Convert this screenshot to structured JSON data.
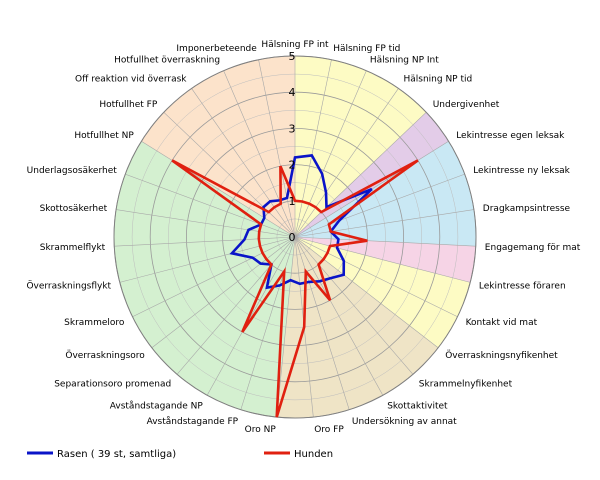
{
  "chart_data": {
    "type": "radar",
    "title": "",
    "r_range": [
      0,
      5
    ],
    "r_ticks": [
      "0",
      "1",
      "2",
      "3",
      "4",
      "5"
    ],
    "grid": true,
    "legend_position": "bottom-left",
    "axes": [
      "Hälsning FP int",
      "Hälsning FP tid",
      "Hälsning NP Int",
      "Hälsning NP tid",
      "Undergivenhet",
      "Lekintresse egen leksak",
      "Lekintresse ny leksak",
      "Dragkampsintresse",
      "Engagemang för mat",
      "Lekintresse föraren",
      "Kontakt vid mat",
      "Överraskningsnyfikenhet",
      "Skrammelnyfikenhet",
      "Skottaktivitet",
      "Undersökning av annat",
      "Oro FP",
      "Oro NP",
      "Avståndstagande FP",
      "Avståndstagande NP",
      "Separationsoro promenad",
      "Överraskningsoro",
      "Skrammeloro",
      "Överraskningsflykt",
      "Skrammelflykt",
      "Skottosäkerhet",
      "Underlagsosäkerhet",
      "Hotfullhet NP",
      "Hotfullhet FP",
      "Off reaktion vid överrask",
      "Hotfullhet överraskning",
      "Imponerbeteende"
    ],
    "sectors": [
      {
        "from": 0,
        "to": 4,
        "color": "#fdfbc4"
      },
      {
        "from": 4,
        "to": 5,
        "color": "#e3cce8"
      },
      {
        "from": 5,
        "to": 8,
        "color": "#c9e8f4"
      },
      {
        "from": 8,
        "to": 9,
        "color": "#f6d4e6"
      },
      {
        "from": 9,
        "to": 11,
        "color": "#fdfbc4"
      },
      {
        "from": 11,
        "to": 16,
        "color": "#efe4c6"
      },
      {
        "from": 16,
        "to": 26,
        "color": "#d4f0d0"
      },
      {
        "from": 26,
        "to": 31,
        "color": "#fce3cb"
      }
    ],
    "series": [
      {
        "name": "Rasen ( 39 st, samtliga)",
        "color": "#0a14c8",
        "values": [
          2.2,
          2.3,
          1.9,
          1.5,
          1.2,
          2.5,
          1.3,
          1.0,
          1.2,
          1.2,
          1.5,
          1.7,
          1.5,
          1.4,
          1.3,
          1.3,
          1.2,
          1.4,
          1.6,
          1.0,
          1.2,
          1.3,
          1.8,
          1.4,
          1.3,
          1.0,
          1.0,
          1.2,
          1.2,
          1.1,
          1.1
        ]
      },
      {
        "name": "Hunden",
        "color": "#e02010",
        "values": [
          1.0,
          1.0,
          1.0,
          1.0,
          1.0,
          4.0,
          1.0,
          1.0,
          2.0,
          1.0,
          1.0,
          1.0,
          1.0,
          2.0,
          1.0,
          2.5,
          5.0,
          1.0,
          3.0,
          1.0,
          1.0,
          1.0,
          1.0,
          1.0,
          1.0,
          1.0,
          4.0,
          1.0,
          1.0,
          1.0,
          2.0
        ]
      }
    ]
  }
}
